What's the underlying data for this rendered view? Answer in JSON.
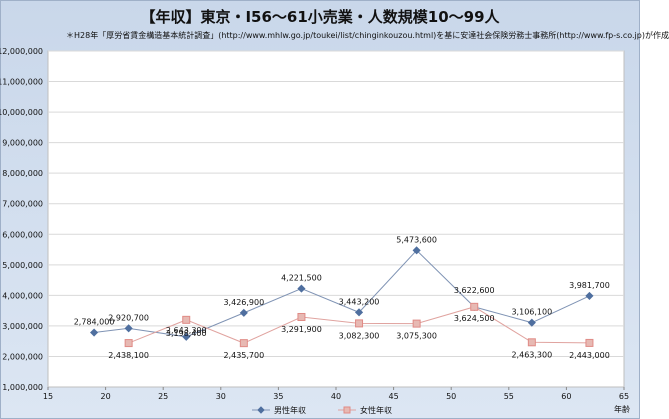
{
  "title": "【年収】東京・I56～61小売業・人数規模10～99人",
  "source_note": "＊H28年「厚労省賃金構造基本統計調査」(http://www.mhlw.go.jp/toukei/list/chinginkouzou.html)を基に安達社会保険労務士事務所(http://www.fp-s.co.jp)が作成",
  "colors": {
    "male": "#4f6f9f",
    "female": "#e08b86",
    "female_fill": "#e7b9b3",
    "male_line": "#7f93b4",
    "female_line": "#e0a39f",
    "grid": "#d9d9d9"
  },
  "chart_data": {
    "type": "line",
    "xlabel": "年齢",
    "ylabel": "",
    "xlim": [
      15,
      65
    ],
    "ylim": [
      1000000,
      12000000
    ],
    "x_ticks": [
      "15",
      "20",
      "25",
      "30",
      "35",
      "40",
      "45",
      "50",
      "55",
      "60",
      "65"
    ],
    "y_ticks": [
      "1,000,000",
      "2,000,000",
      "3,000,000",
      "4,000,000",
      "5,000,000",
      "6,000,000",
      "7,000,000",
      "8,000,000",
      "9,000,000",
      "10,000,000",
      "11,000,000",
      "12,000,000"
    ],
    "grid": true,
    "legend_position": "bottom",
    "series": [
      {
        "name": "男性年収",
        "marker": "diamond",
        "x": [
          19,
          22,
          27,
          32,
          37,
          42,
          47,
          52,
          57,
          62
        ],
        "values": [
          2784000,
          2920700,
          2643300,
          3426900,
          4221500,
          3443200,
          5473600,
          3622600,
          3106100,
          3981700
        ],
        "labels": [
          "2,784,000",
          "2,920,700",
          "2,643,300",
          "3,426,900",
          "4,221,500",
          "3,443,200",
          "5,473,600",
          "3,622,600",
          "3,106,100",
          "3,981,700"
        ]
      },
      {
        "name": "女性年収",
        "marker": "square",
        "x": [
          22,
          27,
          32,
          37,
          42,
          47,
          52,
          57,
          62
        ],
        "values": [
          2438100,
          3198400,
          2435700,
          3291900,
          3082300,
          3075300,
          3624500,
          2463300,
          2443000
        ],
        "labels": [
          "2,438,100",
          "3,198,400",
          "2,435,700",
          "3,291,900",
          "3,082,300",
          "3,075,300",
          "3,624,500",
          "2,463,300",
          "2,443,000"
        ]
      }
    ]
  }
}
